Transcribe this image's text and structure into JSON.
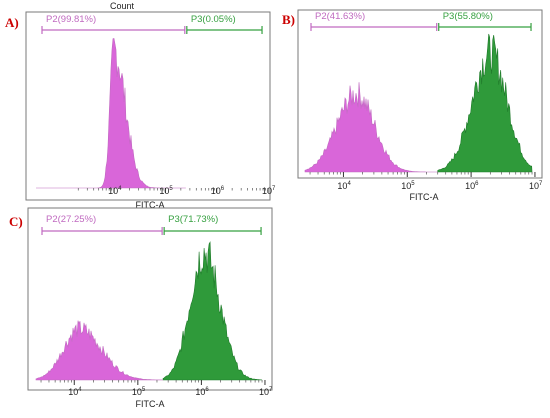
{
  "colors": {
    "p2": "#d966d9",
    "p2_line": "#c06ac0",
    "p3": "#2f9a3a",
    "p3_line": "#36a040",
    "frame": "#7a7a7a"
  },
  "chart_data": [
    {
      "type": "area",
      "panel_label": "A)",
      "top_text": "Count",
      "xlabel": "FITC-A",
      "x_scale": "log",
      "xlim": [
        300,
        10000000
      ],
      "x_ticks": [
        "10^4",
        "10^5",
        "10^6",
        "10^7"
      ],
      "gates": [
        {
          "label": "P2(99.81%)",
          "range": [
            300,
            250000
          ]
        },
        {
          "label": "P3(0.05%)",
          "range": [
            250000,
            8000000
          ]
        }
      ],
      "series": [
        {
          "gate": "P2",
          "peaks": [
            {
              "center": 10000,
              "height": 0.93,
              "sigma_left": 0.08,
              "sigma_right": 0.22
            }
          ]
        }
      ]
    },
    {
      "type": "area",
      "panel_label": "B)",
      "xlabel": "FITC-A",
      "x_scale": "log",
      "xlim": [
        2500,
        12000000
      ],
      "x_ticks": [
        "10^4",
        "10^5",
        "10^6",
        "10^7"
      ],
      "gates": [
        {
          "label": "P2(41.63%)",
          "range": [
            2500,
            300000
          ]
        },
        {
          "label": "P3(55.80%)",
          "range": [
            300000,
            9000000
          ]
        }
      ],
      "series": [
        {
          "gate": "P2",
          "peaks": [
            {
              "center": 16000,
              "height": 0.55,
              "sigma_left": 0.3,
              "sigma_right": 0.28
            }
          ]
        },
        {
          "gate": "P3",
          "peaks": [
            {
              "center": 2000000,
              "height": 0.84,
              "sigma_left": 0.28,
              "sigma_right": 0.26
            }
          ]
        }
      ]
    },
    {
      "type": "area",
      "panel_label": "C)",
      "xlabel": "FITC-A",
      "x_scale": "log",
      "xlim": [
        2500,
        12000000
      ],
      "x_ticks": [
        "10^4",
        "10^5",
        "10^6",
        "10^7"
      ],
      "gates": [
        {
          "label": "P2(27.25%)",
          "range": [
            2500,
            250000
          ]
        },
        {
          "label": "P3(71.73%)",
          "range": [
            250000,
            9000000
          ]
        }
      ],
      "series": [
        {
          "gate": "P2",
          "peaks": [
            {
              "center": 12000,
              "height": 0.32,
              "sigma_left": 0.25,
              "sigma_right": 0.35
            }
          ]
        },
        {
          "gate": "P3",
          "peaks": [
            {
              "center": 1100000,
              "height": 0.8,
              "sigma_left": 0.22,
              "sigma_right": 0.25
            }
          ]
        }
      ]
    }
  ]
}
